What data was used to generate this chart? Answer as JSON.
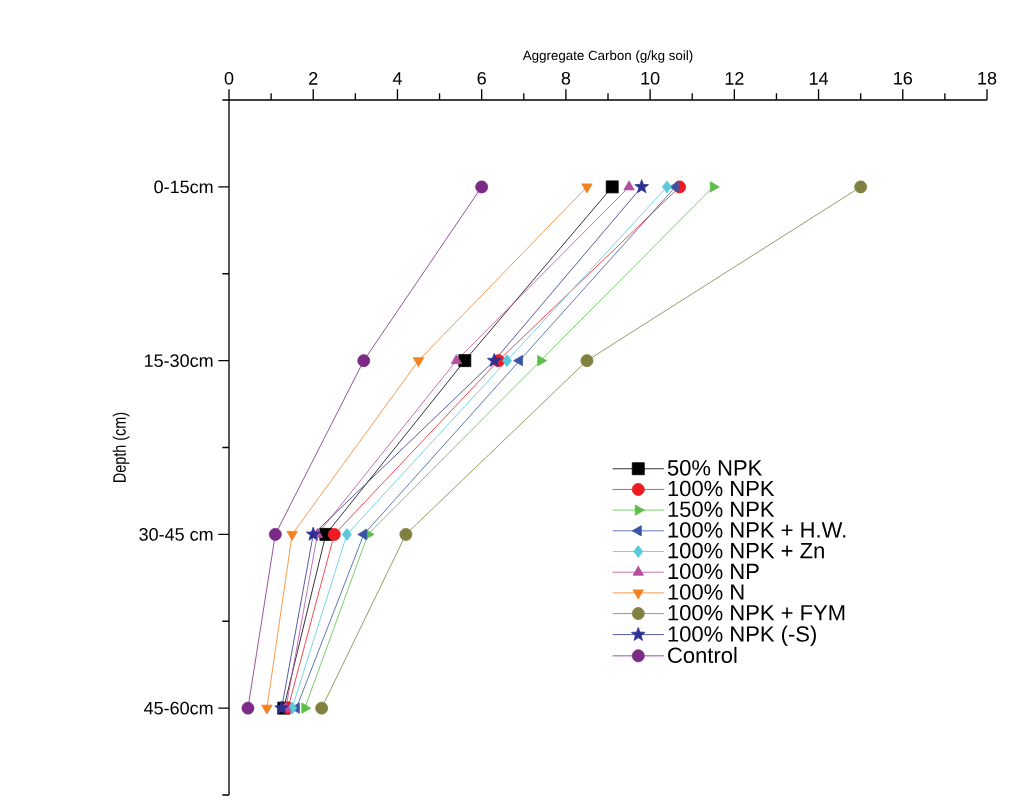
{
  "chart_data": {
    "type": "line",
    "orientation": "horizontal",
    "xlabel": "Aggregate Carbon (g/kg soil)",
    "ylabel": "Depth (cm)",
    "categories": [
      "0-15cm",
      "15-30cm",
      "30-45 cm",
      "45-60cm"
    ],
    "xlim": [
      0,
      18
    ],
    "xticks": [
      0,
      2,
      4,
      6,
      8,
      10,
      12,
      14,
      16,
      18
    ],
    "grid": false,
    "legend": "bottom right",
    "line_style": "solid",
    "series": [
      {
        "name": "50% NPK",
        "color": "#000000",
        "marker": "square",
        "values": [
          9.1,
          5.6,
          2.3,
          1.3
        ]
      },
      {
        "name": "100% NPK",
        "color": "#ed1c24",
        "marker": "circle",
        "values": [
          10.7,
          6.4,
          2.5,
          1.4
        ]
      },
      {
        "name": "150% NPK",
        "color": "#5bbf4a",
        "marker": "triangle-right",
        "values": [
          11.5,
          7.4,
          3.3,
          1.8
        ]
      },
      {
        "name": "100% NPK + H.W.",
        "color": "#3a55a4",
        "marker": "triangle-left",
        "values": [
          10.6,
          6.9,
          3.2,
          1.6
        ]
      },
      {
        "name": "100% NPK + Zn",
        "color": "#5bc8dc",
        "marker": "diamond",
        "values": [
          10.4,
          6.6,
          2.8,
          1.5
        ]
      },
      {
        "name": "100% NP",
        "color": "#b44fa0",
        "marker": "triangle",
        "values": [
          9.5,
          5.4,
          2.1,
          1.35
        ]
      },
      {
        "name": "100% N",
        "color": "#f58220",
        "marker": "triangle-down",
        "values": [
          8.5,
          4.5,
          1.5,
          0.9
        ]
      },
      {
        "name": "100% NPK + FYM",
        "color": "#808040",
        "marker": "circle",
        "values": [
          15.0,
          8.5,
          4.2,
          2.2
        ]
      },
      {
        "name": "100% NPK (-S)",
        "color": "#2e3192",
        "marker": "star",
        "values": [
          9.8,
          6.3,
          2.0,
          1.25
        ]
      },
      {
        "name": "Control",
        "color": "#7b2a85",
        "marker": "circle",
        "values": [
          6.0,
          3.2,
          1.1,
          0.45
        ]
      }
    ]
  }
}
